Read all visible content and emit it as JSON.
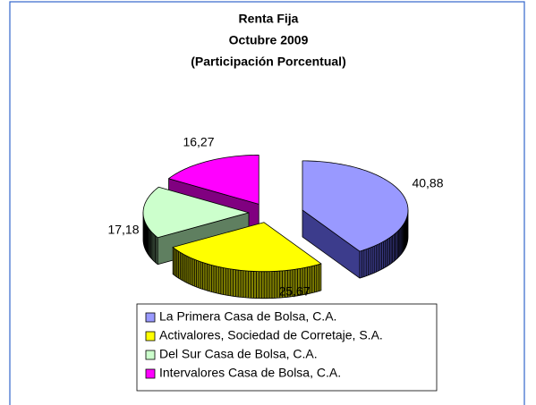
{
  "chart_data": {
    "type": "pie3d",
    "title": [
      "Renta Fija",
      "Octubre 2009",
      "(Participación Porcentual)"
    ],
    "categories": [
      "La Primera Casa de Bolsa, C.A.",
      "Activalores, Sociedad de Corretaje, S.A.",
      "Del Sur Casa de Bolsa, C.A.",
      "Intervalores Casa de Bolsa, C.A."
    ],
    "values": [
      40.88,
      25.67,
      17.18,
      16.27
    ],
    "value_labels": [
      "40,88",
      "25,67",
      "17,18",
      "16,27"
    ],
    "colors": [
      "#9999ff",
      "#ffff00",
      "#ccffcc",
      "#ff00ff"
    ],
    "side_colors": [
      "#3c3c8c",
      "#808000",
      "#5f7f60",
      "#800080"
    ],
    "legend": "bottom"
  }
}
